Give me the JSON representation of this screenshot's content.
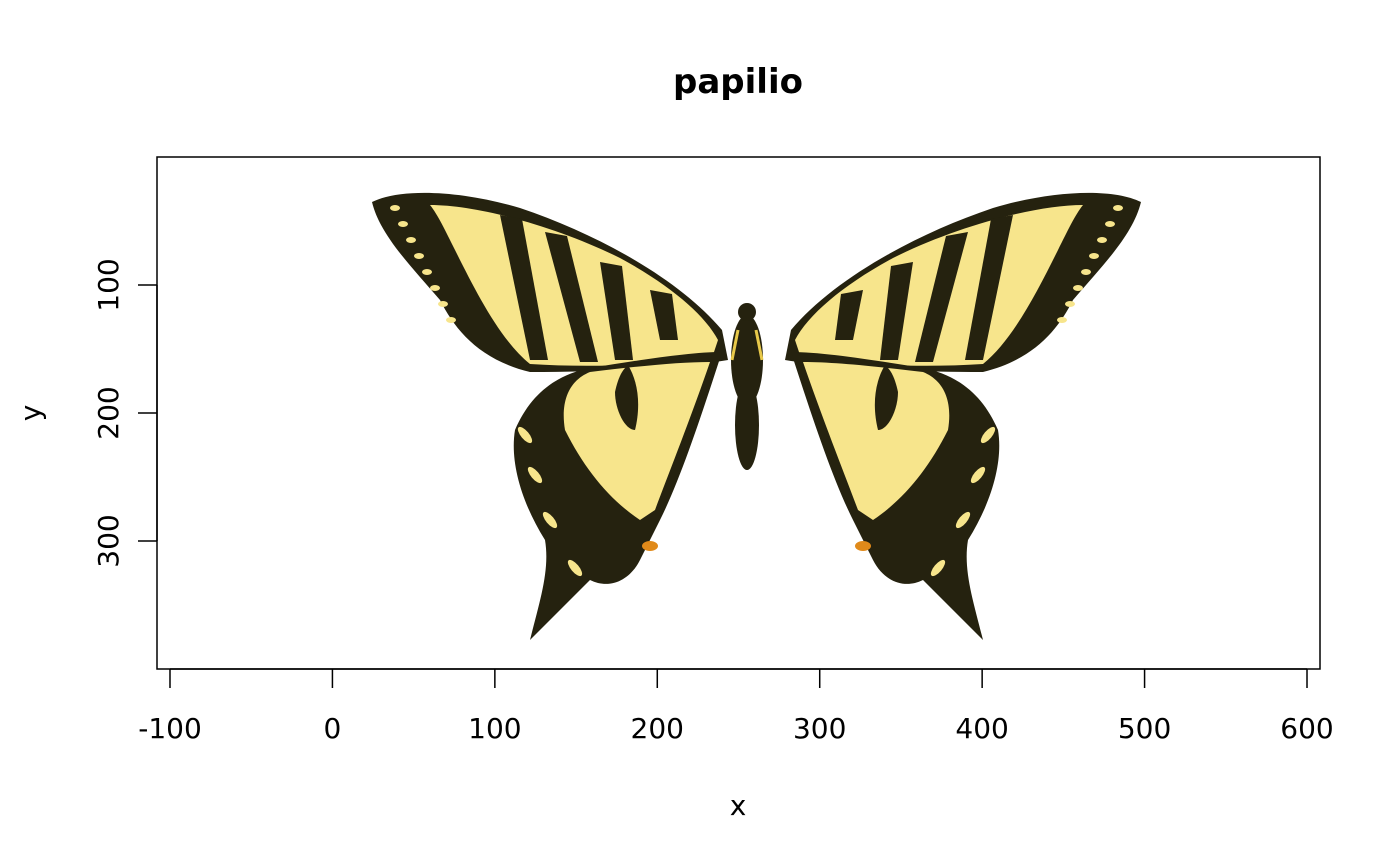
{
  "chart_data": {
    "type": "image",
    "title": "papilio",
    "xlabel": "x",
    "ylabel": "y",
    "xlim": [
      -108,
      608
    ],
    "ylim": [
      400,
      0
    ],
    "y_reversed": true,
    "x_ticks": [
      -100,
      0,
      100,
      200,
      300,
      400,
      500,
      600
    ],
    "x_tick_labels": [
      "-100",
      "0",
      "100",
      "200",
      "300",
      "400",
      "500",
      "600"
    ],
    "y_ticks": [
      100,
      200,
      300
    ],
    "y_tick_labels": [
      "100",
      "200",
      "300"
    ],
    "image_extent": {
      "x": [
        0,
        500
      ],
      "y": [
        0,
        400
      ]
    },
    "grid": false,
    "legend": "none",
    "colors": {
      "wing_yellow": "#f7e58c",
      "wing_black": "#25220f",
      "spot_orange": "#e08a1a",
      "axis": "#000000"
    }
  }
}
